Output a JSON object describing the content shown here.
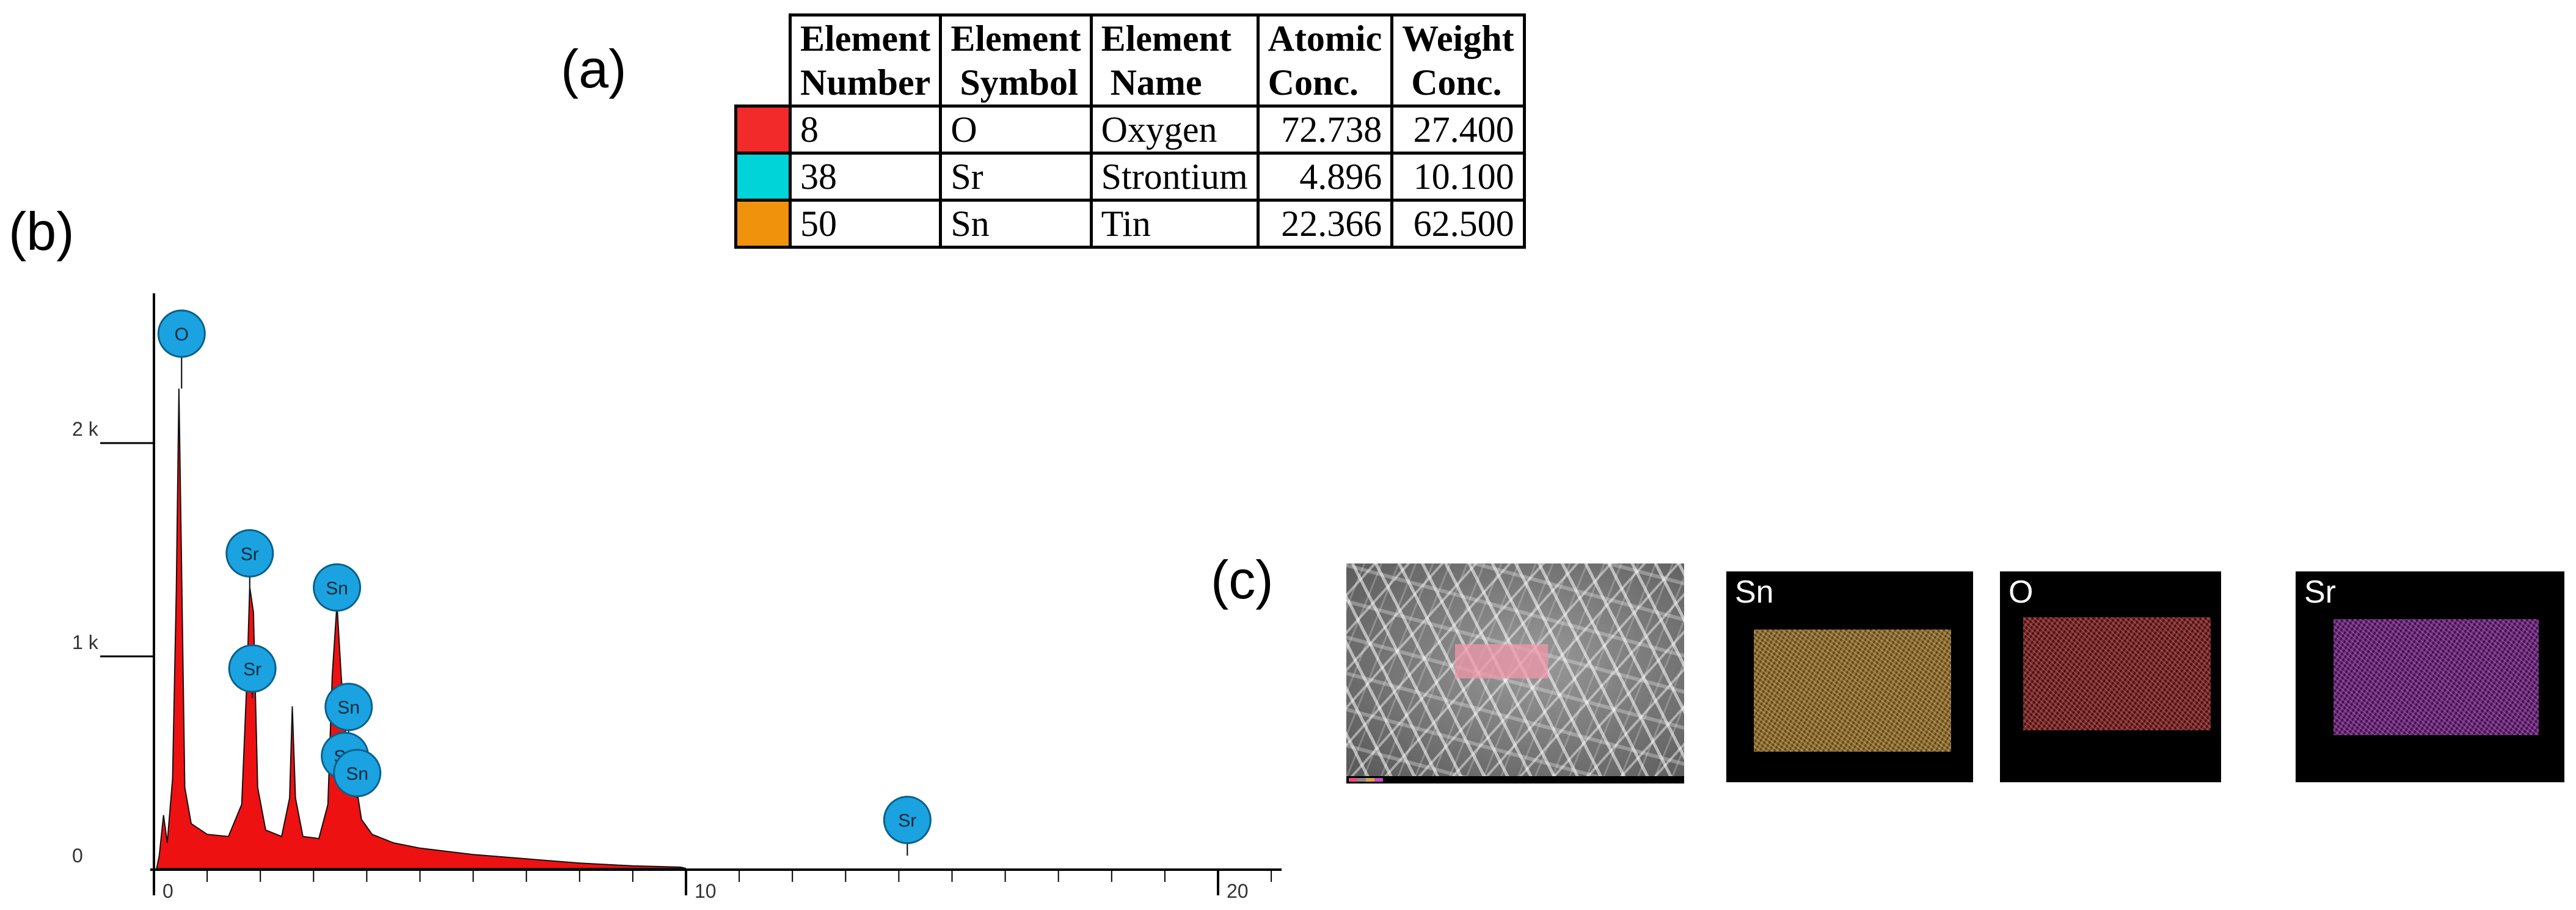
{
  "panel_labels": {
    "a": "(a)",
    "b": "(b)",
    "c": "(c)"
  },
  "table": {
    "headers": [
      [
        "Element",
        "Number"
      ],
      [
        "Element",
        "Symbol"
      ],
      [
        "Element",
        "Name"
      ],
      [
        "Atomic",
        "Conc."
      ],
      [
        "Weight",
        "Conc."
      ]
    ],
    "rows": [
      {
        "swatch": "#f22a2a",
        "number": "8",
        "symbol": "O",
        "name": "Oxygen",
        "atomic": "72.738",
        "weight": "27.400"
      },
      {
        "swatch": "#00d4d8",
        "number": "38",
        "symbol": "Sr",
        "name": "Strontium",
        "atomic": "4.896",
        "weight": "10.100"
      },
      {
        "swatch": "#f0920c",
        "number": "50",
        "symbol": "Sn",
        "name": "Tin",
        "atomic": "22.366",
        "weight": "62.500"
      }
    ]
  },
  "chart_data": {
    "type": "area",
    "fill_color": "#ee1111",
    "xlim": [
      0,
      21
    ],
    "ylim": [
      0,
      2600
    ],
    "x_ticks": [
      {
        "value": 0,
        "label": "0"
      },
      {
        "value": 10,
        "label": "10"
      },
      {
        "value": 20,
        "label": "20"
      }
    ],
    "y_ticks": [
      {
        "value": 0,
        "label": "0"
      },
      {
        "value": 1000,
        "label": "1 k"
      },
      {
        "value": 2000,
        "label": "2 k"
      }
    ],
    "spectrum": [
      [
        0.05,
        0
      ],
      [
        0.1,
        60
      ],
      [
        0.18,
        250
      ],
      [
        0.25,
        120
      ],
      [
        0.35,
        420
      ],
      [
        0.42,
        1300
      ],
      [
        0.47,
        2250
      ],
      [
        0.52,
        1400
      ],
      [
        0.58,
        380
      ],
      [
        0.7,
        210
      ],
      [
        1.0,
        160
      ],
      [
        1.4,
        150
      ],
      [
        1.65,
        300
      ],
      [
        1.75,
        900
      ],
      [
        1.8,
        1320
      ],
      [
        1.87,
        1200
      ],
      [
        1.95,
        380
      ],
      [
        2.1,
        180
      ],
      [
        2.4,
        150
      ],
      [
        2.55,
        330
      ],
      [
        2.6,
        760
      ],
      [
        2.66,
        330
      ],
      [
        2.8,
        150
      ],
      [
        3.1,
        140
      ],
      [
        3.27,
        300
      ],
      [
        3.35,
        900
      ],
      [
        3.44,
        1240
      ],
      [
        3.52,
        900
      ],
      [
        3.6,
        640
      ],
      [
        3.66,
        460
      ],
      [
        3.72,
        460
      ],
      [
        3.8,
        390
      ],
      [
        3.9,
        230
      ],
      [
        4.1,
        160
      ],
      [
        4.5,
        120
      ],
      [
        5.0,
        95
      ],
      [
        6.0,
        65
      ],
      [
        7.0,
        45
      ],
      [
        8.0,
        25
      ],
      [
        9.0,
        12
      ],
      [
        9.9,
        6
      ],
      [
        10.0,
        0
      ]
    ],
    "peaks": [
      {
        "label": "O",
        "x": 0.52,
        "y": 2450,
        "tip": 2250
      },
      {
        "label": "Sr",
        "x": 1.8,
        "y": 1420,
        "tip": 1320
      },
      {
        "label": "Sr",
        "x": 1.85,
        "y": 880,
        "tip": 800
      },
      {
        "label": "Sn",
        "x": 3.44,
        "y": 1260,
        "tip": 1240
      },
      {
        "label": "Sn",
        "x": 3.66,
        "y": 700,
        "tip": 620
      },
      {
        "label": "Sn",
        "x": 3.59,
        "y": 470,
        "tip": 420
      },
      {
        "label": "Sn",
        "x": 3.82,
        "y": 390,
        "tip": 330
      },
      {
        "label": "Sr",
        "x": 14.16,
        "y": 170,
        "tip": 60
      }
    ]
  },
  "maps": {
    "sn_title": "Sn",
    "o_title": "O",
    "sr_title": "Sr",
    "sn_color": "#8c6d36",
    "o_color": "#7a2d2d",
    "sr_color": "#6e2c7c"
  }
}
